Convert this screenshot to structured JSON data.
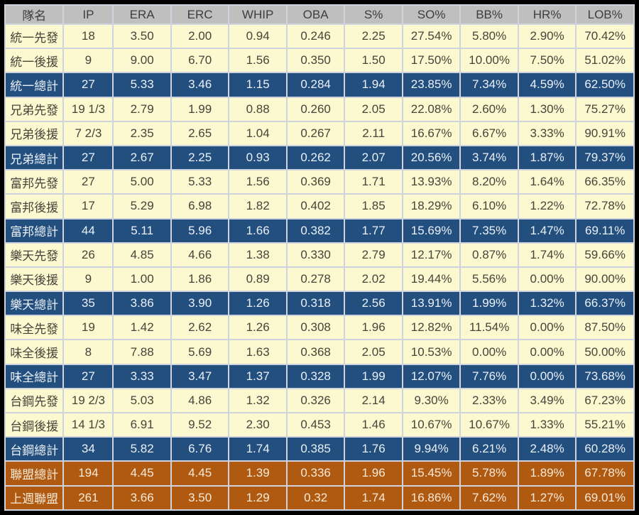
{
  "chart_data": {
    "type": "table",
    "columns": [
      "隊名",
      "IP",
      "ERA",
      "ERC",
      "WHIP",
      "OBA",
      "S%",
      "SO%",
      "BB%",
      "HR%",
      "LOB%"
    ],
    "rows": [
      {
        "style": "data",
        "cells": [
          "統一先發",
          "18",
          "3.50",
          "2.00",
          "0.94",
          "0.246",
          "2.25",
          "27.54%",
          "5.80%",
          "2.90%",
          "70.42%"
        ]
      },
      {
        "style": "data",
        "cells": [
          "統一後援",
          "9",
          "9.00",
          "6.70",
          "1.56",
          "0.350",
          "1.50",
          "17.50%",
          "10.00%",
          "7.50%",
          "51.02%"
        ]
      },
      {
        "style": "team-total",
        "cells": [
          "統一總計",
          "27",
          "5.33",
          "3.46",
          "1.15",
          "0.284",
          "1.94",
          "23.85%",
          "7.34%",
          "4.59%",
          "62.50%"
        ]
      },
      {
        "style": "data",
        "cells": [
          "兄弟先發",
          "19 1/3",
          "2.79",
          "1.99",
          "0.88",
          "0.260",
          "2.05",
          "22.08%",
          "2.60%",
          "1.30%",
          "75.27%"
        ]
      },
      {
        "style": "data",
        "cells": [
          "兄弟後援",
          "7 2/3",
          "2.35",
          "2.65",
          "1.04",
          "0.267",
          "2.11",
          "16.67%",
          "6.67%",
          "3.33%",
          "90.91%"
        ]
      },
      {
        "style": "team-total",
        "cells": [
          "兄弟總計",
          "27",
          "2.67",
          "2.25",
          "0.93",
          "0.262",
          "2.07",
          "20.56%",
          "3.74%",
          "1.87%",
          "79.37%"
        ]
      },
      {
        "style": "data",
        "cells": [
          "富邦先發",
          "27",
          "5.00",
          "5.33",
          "1.56",
          "0.369",
          "1.71",
          "13.93%",
          "8.20%",
          "1.64%",
          "66.35%"
        ]
      },
      {
        "style": "data",
        "cells": [
          "富邦後援",
          "17",
          "5.29",
          "6.98",
          "1.82",
          "0.402",
          "1.85",
          "18.29%",
          "6.10%",
          "1.22%",
          "72.78%"
        ]
      },
      {
        "style": "team-total",
        "cells": [
          "富邦總計",
          "44",
          "5.11",
          "5.96",
          "1.66",
          "0.382",
          "1.77",
          "15.69%",
          "7.35%",
          "1.47%",
          "69.11%"
        ]
      },
      {
        "style": "data",
        "cells": [
          "樂天先發",
          "26",
          "4.85",
          "4.66",
          "1.38",
          "0.330",
          "2.79",
          "12.17%",
          "0.87%",
          "1.74%",
          "59.66%"
        ]
      },
      {
        "style": "data",
        "cells": [
          "樂天後援",
          "9",
          "1.00",
          "1.86",
          "0.89",
          "0.278",
          "2.02",
          "19.44%",
          "5.56%",
          "0.00%",
          "90.00%"
        ]
      },
      {
        "style": "team-total",
        "cells": [
          "樂天總計",
          "35",
          "3.86",
          "3.90",
          "1.26",
          "0.318",
          "2.56",
          "13.91%",
          "1.99%",
          "1.32%",
          "66.37%"
        ]
      },
      {
        "style": "data",
        "cells": [
          "味全先發",
          "19",
          "1.42",
          "2.62",
          "1.26",
          "0.308",
          "1.96",
          "12.82%",
          "11.54%",
          "0.00%",
          "87.50%"
        ]
      },
      {
        "style": "data",
        "cells": [
          "味全後援",
          "8",
          "7.88",
          "5.69",
          "1.63",
          "0.368",
          "2.05",
          "10.53%",
          "0.00%",
          "0.00%",
          "50.00%"
        ]
      },
      {
        "style": "team-total",
        "cells": [
          "味全總計",
          "27",
          "3.33",
          "3.47",
          "1.37",
          "0.328",
          "1.99",
          "12.07%",
          "7.76%",
          "0.00%",
          "73.68%"
        ]
      },
      {
        "style": "data",
        "cells": [
          "台鋼先發",
          "19 2/3",
          "5.03",
          "4.86",
          "1.32",
          "0.326",
          "2.14",
          "9.30%",
          "2.33%",
          "3.49%",
          "67.23%"
        ]
      },
      {
        "style": "data",
        "cells": [
          "台鋼後援",
          "14 1/3",
          "6.91",
          "9.52",
          "2.30",
          "0.453",
          "1.46",
          "10.67%",
          "10.67%",
          "1.33%",
          "55.21%"
        ]
      },
      {
        "style": "team-total",
        "cells": [
          "台鋼總計",
          "34",
          "5.82",
          "6.76",
          "1.74",
          "0.385",
          "1.76",
          "9.94%",
          "6.21%",
          "2.48%",
          "60.28%"
        ]
      },
      {
        "style": "league-total",
        "cells": [
          "聯盟總計",
          "194",
          "4.45",
          "4.45",
          "1.39",
          "0.336",
          "1.96",
          "15.45%",
          "5.78%",
          "1.89%",
          "67.78%"
        ]
      },
      {
        "style": "league-total",
        "cells": [
          "上週聯盟",
          "261",
          "3.66",
          "3.50",
          "1.29",
          "0.32",
          "1.74",
          "16.86%",
          "7.62%",
          "1.27%",
          "69.01%"
        ]
      }
    ]
  },
  "colors": {
    "frame_border": "#000000",
    "header_bg": "#bfbfbf",
    "header_text": "#3d3d3d",
    "data_row_bg": "#fcf8d0",
    "data_row_text": "#45453a",
    "team_total_bg": "#234f7e",
    "team_total_text": "#eaf0f8",
    "league_total_bg": "#b05a11",
    "league_total_text": "#f8ead9",
    "grid_line": "#cfd3de"
  }
}
